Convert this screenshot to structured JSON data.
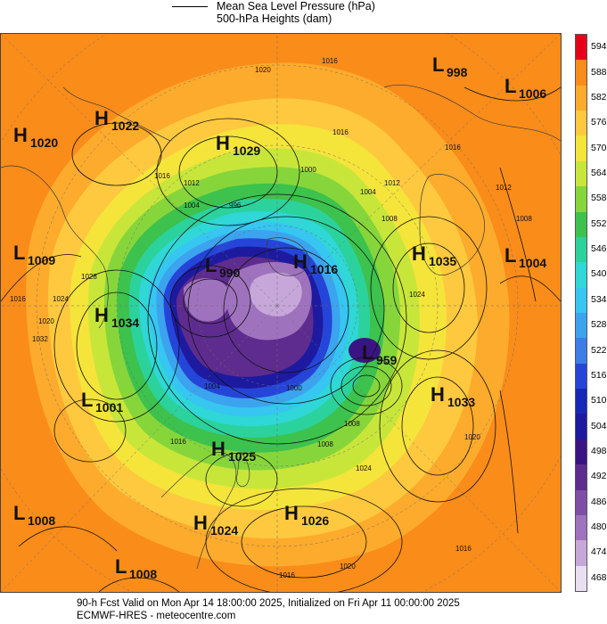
{
  "header": {
    "legend_line1": "Mean Sea Level Pressure (hPa)",
    "legend_line2": "500-hPa Heights (dam)"
  },
  "colorbar": {
    "levels": [
      "594",
      "588",
      "582",
      "576",
      "570",
      "564",
      "558",
      "552",
      "546",
      "540",
      "534",
      "528",
      "522",
      "516",
      "510",
      "504",
      "498",
      "492",
      "486",
      "480",
      "474",
      "468"
    ],
    "colors": [
      "#e8001b",
      "#fa8c1a",
      "#fdab2c",
      "#fec93e",
      "#f5e43a",
      "#c8e63a",
      "#86d63b",
      "#3cc24d",
      "#2bd29c",
      "#2fd7d6",
      "#36c6f1",
      "#3ca3ee",
      "#3c7de8",
      "#2545d8",
      "#1628b8",
      "#1e1aa0",
      "#3b1484",
      "#5e2c8f",
      "#7f4ea6",
      "#9f72be",
      "#c7a7da",
      "#e9dff1"
    ]
  },
  "map": {
    "pressure_centers": [
      {
        "type": "H",
        "value": "1022"
      },
      {
        "type": "H",
        "value": "1020"
      },
      {
        "type": "H",
        "value": "1029"
      },
      {
        "type": "L",
        "value": "998"
      },
      {
        "type": "L",
        "value": "1006"
      },
      {
        "type": "L",
        "value": "1009"
      },
      {
        "type": "H",
        "value": "1034"
      },
      {
        "type": "L",
        "value": "990"
      },
      {
        "type": "H",
        "value": "1016"
      },
      {
        "type": "H",
        "value": "1035"
      },
      {
        "type": "L",
        "value": "1004"
      },
      {
        "type": "L",
        "value": "1001"
      },
      {
        "type": "L",
        "value": "959"
      },
      {
        "type": "H",
        "value": "1033"
      },
      {
        "type": "H",
        "value": "1025"
      },
      {
        "type": "L",
        "value": "1008"
      },
      {
        "type": "H",
        "value": "1024"
      },
      {
        "type": "H",
        "value": "1026"
      },
      {
        "type": "L",
        "value": "1008"
      }
    ],
    "isobar_labels": [
      "1020",
      "1016",
      "1016",
      "1016",
      "1012",
      "1016",
      "1012",
      "1004",
      "996",
      "1000",
      "1004",
      "1012",
      "1008",
      "1016",
      "1020",
      "1008",
      "1024",
      "1028",
      "1032",
      "1024",
      "1004",
      "1000",
      "1008",
      "1016",
      "1008",
      "1024",
      "1020",
      "1016",
      "1016",
      "1020"
    ]
  },
  "footer": {
    "line1": "90-h Fcst Valid on Mon Apr 14 18:00:00 2025, Initialized on Fri Apr 11 00:00:00 2025",
    "line2": "ECMWF-HRES  - meteocentre.com"
  }
}
